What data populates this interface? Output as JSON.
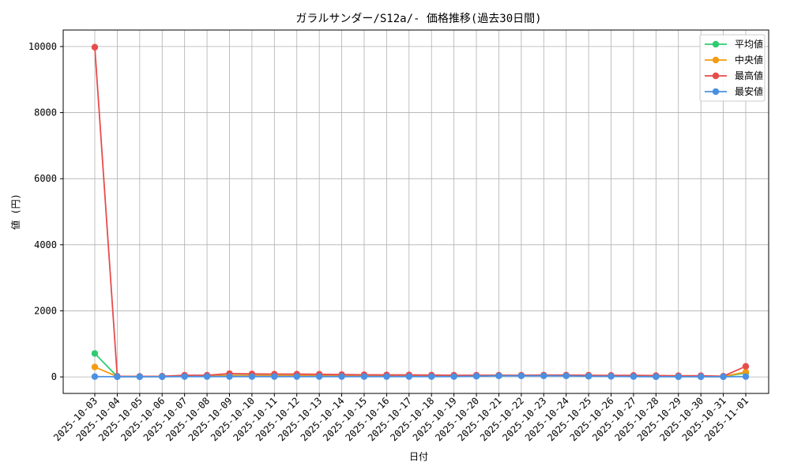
{
  "chart_data": {
    "type": "line",
    "title": "ガラルサンダー/S12a/- 価格推移(過去30日間)",
    "xlabel": "日付",
    "ylabel": "値 (円)",
    "ylim": [
      -500,
      10500
    ],
    "yticks": [
      0,
      2000,
      4000,
      6000,
      8000,
      10000
    ],
    "grid": true,
    "legend_position": "top-right",
    "x": [
      "2025-10-03",
      "2025-10-04",
      "2025-10-05",
      "2025-10-06",
      "2025-10-07",
      "2025-10-08",
      "2025-10-09",
      "2025-10-10",
      "2025-10-11",
      "2025-10-12",
      "2025-10-13",
      "2025-10-14",
      "2025-10-15",
      "2025-10-16",
      "2025-10-17",
      "2025-10-18",
      "2025-10-19",
      "2025-10-20",
      "2025-10-21",
      "2025-10-22",
      "2025-10-23",
      "2025-10-24",
      "2025-10-25",
      "2025-10-26",
      "2025-10-27",
      "2025-10-28",
      "2025-10-29",
      "2025-10-30",
      "2025-10-31",
      "2025-11-01"
    ],
    "series": [
      {
        "name": "平均値",
        "color": "#2ecc71",
        "values": [
          710,
          10,
          10,
          15,
          40,
          40,
          45,
          45,
          45,
          45,
          45,
          40,
          40,
          40,
          40,
          35,
          35,
          40,
          45,
          45,
          45,
          45,
          40,
          35,
          30,
          20,
          15,
          15,
          10,
          120
        ]
      },
      {
        "name": "中央値",
        "color": "#f39c12",
        "values": [
          300,
          10,
          10,
          10,
          35,
          35,
          40,
          40,
          40,
          40,
          40,
          40,
          40,
          40,
          35,
          35,
          30,
          40,
          40,
          40,
          40,
          40,
          35,
          30,
          25,
          15,
          10,
          10,
          10,
          150
        ]
      },
      {
        "name": "最高値",
        "color": "#e74c4c",
        "values": [
          9980,
          20,
          15,
          20,
          50,
          50,
          100,
          90,
          85,
          85,
          80,
          70,
          65,
          60,
          60,
          55,
          50,
          50,
          50,
          50,
          55,
          55,
          50,
          45,
          45,
          40,
          35,
          35,
          20,
          320
        ]
      },
      {
        "name": "最安値",
        "color": "#4a90e2",
        "values": [
          10,
          5,
          5,
          5,
          10,
          10,
          10,
          10,
          10,
          10,
          10,
          10,
          10,
          10,
          10,
          10,
          10,
          20,
          30,
          30,
          30,
          30,
          20,
          15,
          10,
          5,
          5,
          5,
          5,
          10
        ]
      }
    ]
  }
}
